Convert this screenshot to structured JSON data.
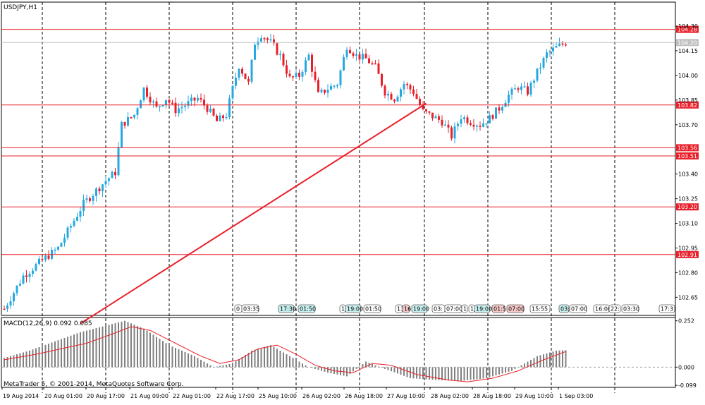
{
  "window": {
    "symbol_label": "USDJPY,H1",
    "indicator_label": "MACD(12,26,9) 0.092 0.085",
    "copyright": "MetaTrader 5, © 2001-2014, MetaQuotes Software Corp."
  },
  "colors": {
    "bull": "#26a9e0",
    "bear": "#e8202a",
    "level": "#e8202a",
    "trend": "#e8202a",
    "macd_bar": "#808080",
    "macd_signal": "#e8202a",
    "bid": "#c0c0c0"
  },
  "price_axis": {
    "ticks": [
      "104.30",
      "104.15",
      "104.00",
      "103.85",
      "103.70",
      "103.40",
      "103.25",
      "103.10",
      "102.95",
      "102.80",
      "102.65"
    ],
    "bid": "104.20"
  },
  "levels": [
    {
      "label": "104.28",
      "value": 104.28
    },
    {
      "label": "103.82",
      "value": 103.82
    },
    {
      "label": "103.56",
      "value": 103.56
    },
    {
      "label": "103.51",
      "value": 103.51
    },
    {
      "label": "103.20",
      "value": 103.2
    },
    {
      "label": "102.91",
      "value": 102.91
    }
  ],
  "trendline": {
    "from": {
      "bar": 24,
      "price": 102.49
    },
    "to": {
      "bar": 133,
      "price": 103.83
    }
  },
  "time_axis": [
    "19 Aug 2014",
    "20 Aug 01:00",
    "20 Aug 17:00",
    "21 Aug 09:00",
    "22 Aug 01:00",
    "22 Aug 17:00",
    "25 Aug 10:00",
    "26 Aug 02:00",
    "26 Aug 18:00",
    "27 Aug 10:00",
    "28 Aug 02:00",
    "28 Aug 18:00",
    "29 Aug 10:00",
    "1 Sep 03:00"
  ],
  "event_labels": [
    {
      "text": "0",
      "color": "#ffffff"
    },
    {
      "text": "03:35",
      "color": "#ffffff"
    },
    {
      "text": "17:30",
      "color": "#c8f0ef"
    },
    {
      "text": "01:50",
      "color": "#c8f0ef"
    },
    {
      "text": "1",
      "color": "#ffffff"
    },
    {
      "text": "19:00",
      "color": "#c8f0ef"
    },
    {
      "text": "01:50",
      "color": "#ffffff"
    },
    {
      "text": "13",
      "color": "#ffffff"
    },
    {
      "text": "16",
      "color": "#f7c9c9"
    },
    {
      "text": "19:00",
      "color": "#c8f0ef"
    },
    {
      "text": "03:",
      "color": "#ffffff"
    },
    {
      "text": "07:00",
      "color": "#ffffff"
    },
    {
      "text": "1",
      "color": "#ffffff"
    },
    {
      "text": "1",
      "color": "#ffffff"
    },
    {
      "text": "19:00",
      "color": "#c8f0ef"
    },
    {
      "text": "01:5",
      "color": "#f7c9c9"
    },
    {
      "text": "07:00",
      "color": "#f7c9c9"
    },
    {
      "text": "15:55",
      "color": "#ffffff"
    },
    {
      "text": "03:",
      "color": "#c8f0ef"
    },
    {
      "text": "07:00",
      "color": "#ffffff"
    },
    {
      "text": "16:00",
      "color": "#ffffff"
    },
    {
      "text": "22:",
      "color": "#ffffff"
    },
    {
      "text": "03:30",
      "color": "#ffffff"
    },
    {
      "text": "17:3",
      "color": "#ffffff"
    }
  ],
  "macd_axis": {
    "ticks": [
      "0.252",
      "0.000",
      "-0.099"
    ]
  },
  "chart_data": {
    "type": "candlestick",
    "symbol": "USDJPY",
    "timeframe": "H1",
    "ylim": [
      102.54,
      104.36
    ],
    "waypoints": [
      [
        0,
        102.58
      ],
      [
        6,
        102.78
      ],
      [
        11,
        102.86
      ],
      [
        17,
        102.95
      ],
      [
        25,
        103.22
      ],
      [
        32,
        103.36
      ],
      [
        35,
        103.41
      ],
      [
        37,
        103.7
      ],
      [
        41,
        103.76
      ],
      [
        44,
        103.92
      ],
      [
        48,
        103.8
      ],
      [
        51,
        103.86
      ],
      [
        54,
        103.79
      ],
      [
        57,
        103.82
      ],
      [
        61,
        103.86
      ],
      [
        64,
        103.8
      ],
      [
        67,
        103.72
      ],
      [
        70,
        103.76
      ],
      [
        72,
        103.92
      ],
      [
        74,
        104.06
      ],
      [
        77,
        103.95
      ],
      [
        79,
        104.2
      ],
      [
        81,
        104.25
      ],
      [
        84,
        104.2
      ],
      [
        87,
        104.12
      ],
      [
        90,
        103.98
      ],
      [
        93,
        104.0
      ],
      [
        96,
        104.12
      ],
      [
        99,
        103.88
      ],
      [
        102,
        103.92
      ],
      [
        105,
        103.95
      ],
      [
        108,
        104.18
      ],
      [
        111,
        104.12
      ],
      [
        114,
        104.1
      ],
      [
        117,
        104.05
      ],
      [
        120,
        103.9
      ],
      [
        123,
        103.86
      ],
      [
        126,
        103.95
      ],
      [
        129,
        103.9
      ],
      [
        132,
        103.78
      ],
      [
        135,
        103.75
      ],
      [
        138,
        103.72
      ],
      [
        141,
        103.63
      ],
      [
        144,
        103.75
      ],
      [
        147,
        103.72
      ],
      [
        150,
        103.7
      ],
      [
        153,
        103.74
      ],
      [
        156,
        103.8
      ],
      [
        159,
        103.88
      ],
      [
        162,
        103.93
      ],
      [
        165,
        103.9
      ],
      [
        168,
        104.02
      ],
      [
        171,
        104.13
      ],
      [
        174,
        104.17
      ],
      [
        177,
        104.2
      ]
    ],
    "macd": {
      "bar_waypoints": [
        [
          0,
          0.05
        ],
        [
          8,
          0.09
        ],
        [
          16,
          0.14
        ],
        [
          24,
          0.19
        ],
        [
          33,
          0.23
        ],
        [
          38,
          0.252
        ],
        [
          44,
          0.21
        ],
        [
          52,
          0.12
        ],
        [
          60,
          0.06
        ],
        [
          66,
          0.0
        ],
        [
          72,
          0.02
        ],
        [
          78,
          0.09
        ],
        [
          84,
          0.12
        ],
        [
          90,
          0.06
        ],
        [
          96,
          0.0
        ],
        [
          102,
          -0.03
        ],
        [
          108,
          -0.05
        ],
        [
          114,
          0.03
        ],
        [
          120,
          -0.01
        ],
        [
          128,
          -0.06
        ],
        [
          136,
          -0.07
        ],
        [
          144,
          -0.075
        ],
        [
          152,
          -0.06
        ],
        [
          160,
          -0.02
        ],
        [
          168,
          0.06
        ],
        [
          174,
          0.09
        ],
        [
          177,
          0.092
        ]
      ],
      "signal_waypoints": [
        [
          0,
          0.04
        ],
        [
          10,
          0.07
        ],
        [
          18,
          0.1
        ],
        [
          26,
          0.13
        ],
        [
          34,
          0.18
        ],
        [
          40,
          0.22
        ],
        [
          46,
          0.2
        ],
        [
          54,
          0.13
        ],
        [
          62,
          0.06
        ],
        [
          68,
          0.02
        ],
        [
          74,
          0.04
        ],
        [
          80,
          0.1
        ],
        [
          86,
          0.12
        ],
        [
          92,
          0.07
        ],
        [
          98,
          0.01
        ],
        [
          104,
          -0.02
        ],
        [
          110,
          -0.03
        ],
        [
          116,
          0.02
        ],
        [
          122,
          0.01
        ],
        [
          130,
          -0.04
        ],
        [
          140,
          -0.07
        ],
        [
          146,
          -0.08
        ],
        [
          154,
          -0.06
        ],
        [
          162,
          -0.02
        ],
        [
          170,
          0.04
        ],
        [
          177,
          0.085
        ]
      ],
      "ylim": [
        -0.11,
        0.27
      ]
    }
  }
}
